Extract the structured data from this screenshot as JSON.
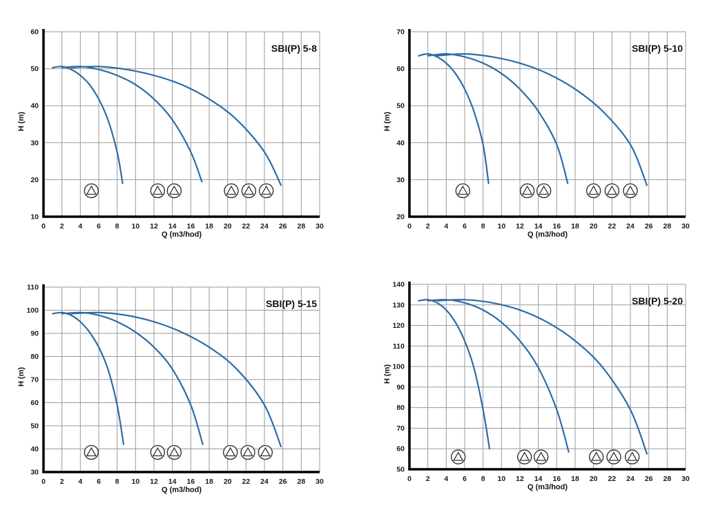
{
  "page": {
    "background": "#ffffff"
  },
  "chart_data": [
    {
      "type": "line",
      "title": "SBI(P) 5-8",
      "xlabel": "Q (m3/hod)",
      "ylabel": "H (m)",
      "xlim": [
        0,
        30
      ],
      "ylim": [
        10,
        60
      ],
      "xticks": [
        0,
        2,
        4,
        6,
        8,
        10,
        12,
        14,
        16,
        18,
        20,
        22,
        24,
        26,
        28,
        30
      ],
      "yticks": [
        10,
        20,
        30,
        40,
        50,
        60
      ],
      "grid": true,
      "grid_color": "#9a9a9a",
      "curve_color": "#2e6ca4",
      "series": [
        {
          "name": "1-pump",
          "points": [
            [
              1,
              50.3
            ],
            [
              2,
              50.6
            ],
            [
              3,
              49.8
            ],
            [
              4,
              48.2
            ],
            [
              5,
              45.7
            ],
            [
              6,
              41.8
            ],
            [
              7,
              36.2
            ],
            [
              8,
              27.5
            ],
            [
              8.6,
              19
            ]
          ]
        },
        {
          "name": "2-pumps",
          "points": [
            [
              2,
              50.3
            ],
            [
              4,
              50.6
            ],
            [
              6,
              49.8
            ],
            [
              8,
              48.2
            ],
            [
              10,
              45.7
            ],
            [
              12,
              41.8
            ],
            [
              14,
              36.2
            ],
            [
              16,
              27.5
            ],
            [
              17.2,
              19.5
            ]
          ]
        },
        {
          "name": "3-pumps",
          "points": [
            [
              3,
              50.3
            ],
            [
              6,
              50.6
            ],
            [
              9,
              49.8
            ],
            [
              12,
              48.2
            ],
            [
              15,
              45.7
            ],
            [
              18,
              41.8
            ],
            [
              21,
              36.2
            ],
            [
              24,
              27.5
            ],
            [
              25.8,
              18.5
            ]
          ]
        }
      ],
      "pump_symbols": {
        "h": 17,
        "groups": [
          [
            5.2
          ],
          [
            12.4,
            14.2
          ],
          [
            20.4,
            22.3,
            24.2
          ]
        ]
      }
    },
    {
      "type": "line",
      "title": "SBI(P) 5-10",
      "xlabel": "Q (m3/hod)",
      "ylabel": "H (m)",
      "xlim": [
        0,
        30
      ],
      "ylim": [
        20,
        70
      ],
      "xticks": [
        0,
        2,
        4,
        6,
        8,
        10,
        12,
        14,
        16,
        18,
        20,
        22,
        24,
        26,
        28,
        30
      ],
      "yticks": [
        20,
        30,
        40,
        50,
        60,
        70
      ],
      "grid": true,
      "grid_color": "#9a9a9a",
      "curve_color": "#2e6ca4",
      "series": [
        {
          "name": "1-pump",
          "points": [
            [
              1,
              63.5
            ],
            [
              2,
              64
            ],
            [
              3,
              63.2
            ],
            [
              4,
              61.5
            ],
            [
              5,
              58.7
            ],
            [
              6,
              54.5
            ],
            [
              7,
              48.5
            ],
            [
              8,
              39.5
            ],
            [
              8.6,
              29
            ]
          ]
        },
        {
          "name": "2-pumps",
          "points": [
            [
              2,
              63.5
            ],
            [
              4,
              64
            ],
            [
              6,
              63.2
            ],
            [
              8,
              61.5
            ],
            [
              10,
              58.7
            ],
            [
              12,
              54.5
            ],
            [
              14,
              48.5
            ],
            [
              16,
              39.5
            ],
            [
              17.2,
              29
            ]
          ]
        },
        {
          "name": "3-pumps",
          "points": [
            [
              3,
              63.5
            ],
            [
              6,
              64
            ],
            [
              9,
              63.2
            ],
            [
              12,
              61.5
            ],
            [
              15,
              58.7
            ],
            [
              18,
              54.5
            ],
            [
              21,
              48.5
            ],
            [
              24,
              39.5
            ],
            [
              25.8,
              28.5
            ]
          ]
        }
      ],
      "pump_symbols": {
        "h": 27,
        "groups": [
          [
            5.8
          ],
          [
            12.8,
            14.6
          ],
          [
            20,
            22,
            24
          ]
        ]
      }
    },
    {
      "type": "line",
      "title": "SBI(P) 5-15",
      "xlabel": "Q (m3/hod)",
      "ylabel": "H (m)",
      "xlim": [
        0,
        30
      ],
      "ylim": [
        30,
        110
      ],
      "xticks": [
        0,
        2,
        4,
        6,
        8,
        10,
        12,
        14,
        16,
        18,
        20,
        22,
        24,
        26,
        28,
        30
      ],
      "yticks": [
        30,
        40,
        50,
        60,
        70,
        80,
        90,
        100,
        110
      ],
      "grid": true,
      "grid_color": "#9a9a9a",
      "curve_color": "#2e6ca4",
      "series": [
        {
          "name": "1-pump",
          "points": [
            [
              1,
              98.5
            ],
            [
              2,
              99
            ],
            [
              3,
              97.8
            ],
            [
              4,
              95
            ],
            [
              5,
              90.5
            ],
            [
              6,
              84
            ],
            [
              7,
              74.5
            ],
            [
              8,
              59
            ],
            [
              8.7,
              42
            ]
          ]
        },
        {
          "name": "2-pumps",
          "points": [
            [
              2,
              98.5
            ],
            [
              4,
              99
            ],
            [
              6,
              97.8
            ],
            [
              8,
              95
            ],
            [
              10,
              90.5
            ],
            [
              12,
              84
            ],
            [
              14,
              74.5
            ],
            [
              16,
              59
            ],
            [
              17.3,
              42
            ]
          ]
        },
        {
          "name": "3-pumps",
          "points": [
            [
              3,
              98.5
            ],
            [
              6,
              99
            ],
            [
              9,
              97.8
            ],
            [
              12,
              95
            ],
            [
              15,
              90.5
            ],
            [
              18,
              84
            ],
            [
              21,
              74.5
            ],
            [
              24,
              59
            ],
            [
              25.8,
              41
            ]
          ]
        }
      ],
      "pump_symbols": {
        "h": 38.5,
        "groups": [
          [
            5.2
          ],
          [
            12.4,
            14.2
          ],
          [
            20.3,
            22.2,
            24.1
          ]
        ]
      }
    },
    {
      "type": "line",
      "title": "SBI(P) 5-20",
      "xlabel": "Q (m3/hod)",
      "ylabel": "H (m)",
      "xlim": [
        0,
        30
      ],
      "ylim": [
        50,
        140
      ],
      "xticks": [
        0,
        2,
        4,
        6,
        8,
        10,
        12,
        14,
        16,
        18,
        20,
        22,
        24,
        26,
        28,
        30
      ],
      "yticks": [
        50,
        60,
        70,
        80,
        90,
        100,
        110,
        120,
        130,
        140
      ],
      "grid": true,
      "grid_color": "#9a9a9a",
      "curve_color": "#2e6ca4",
      "series": [
        {
          "name": "1-pump",
          "points": [
            [
              1,
              132
            ],
            [
              2,
              132.5
            ],
            [
              3,
              131
            ],
            [
              4,
              127.5
            ],
            [
              5,
              121.5
            ],
            [
              6,
              112.5
            ],
            [
              7,
              99.5
            ],
            [
              8,
              79
            ],
            [
              8.7,
              60
            ]
          ]
        },
        {
          "name": "2-pumps",
          "points": [
            [
              2,
              132
            ],
            [
              4,
              132.5
            ],
            [
              6,
              131
            ],
            [
              8,
              127.5
            ],
            [
              10,
              121.5
            ],
            [
              12,
              112.5
            ],
            [
              14,
              99.5
            ],
            [
              16,
              79
            ],
            [
              17.3,
              58.5
            ]
          ]
        },
        {
          "name": "3-pumps",
          "points": [
            [
              3,
              132
            ],
            [
              6,
              132.5
            ],
            [
              9,
              131
            ],
            [
              12,
              127.5
            ],
            [
              15,
              121.5
            ],
            [
              18,
              112.5
            ],
            [
              21,
              99.5
            ],
            [
              24,
              79
            ],
            [
              25.8,
              57.5
            ]
          ]
        }
      ],
      "pump_symbols": {
        "h": 56,
        "groups": [
          [
            5.3
          ],
          [
            12.5,
            14.3
          ],
          [
            20.3,
            22.2,
            24.2
          ]
        ]
      }
    }
  ]
}
